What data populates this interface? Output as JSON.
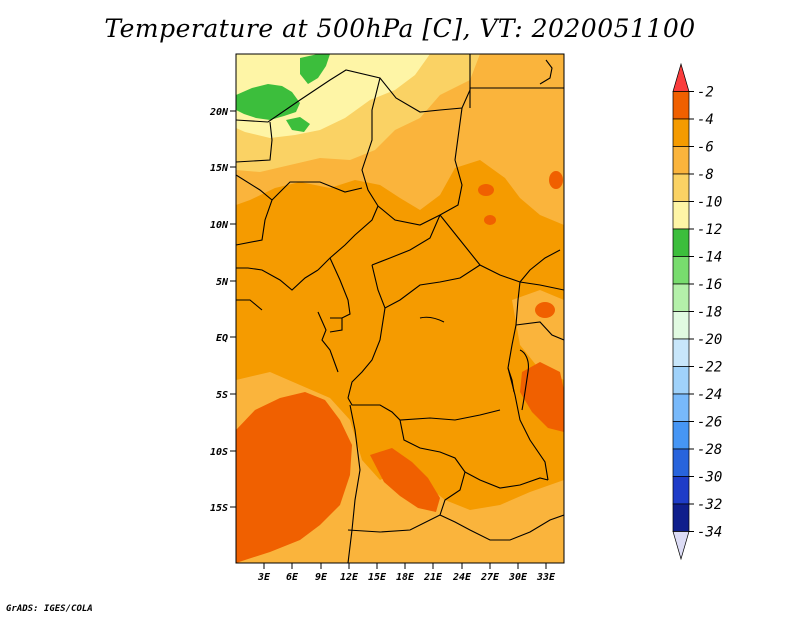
{
  "title": "Temperature at 500hPa [C], VT: 2020051100",
  "footer": "GrADS: IGES/COLA",
  "map": {
    "lat_labels": [
      "20N",
      "15N",
      "10N",
      "5N",
      "EQ",
      "5S",
      "10S",
      "15S"
    ],
    "lon_labels": [
      "3E",
      "6E",
      "9E",
      "12E",
      "15E",
      "18E",
      "21E",
      "24E",
      "27E",
      "30E",
      "33E"
    ]
  },
  "colorbar": {
    "levels": [
      "-2",
      "-4",
      "-6",
      "-8",
      "-10",
      "-12",
      "-14",
      "-16",
      "-18",
      "-20",
      "-22",
      "-24",
      "-26",
      "-28",
      "-30",
      "-32",
      "-34"
    ],
    "colors": [
      "#fa3c3c",
      "#f06000",
      "#f59b00",
      "#fab43c",
      "#fad264",
      "#fef5a6",
      "#3cbe3c",
      "#78dc6e",
      "#b4f0aa",
      "#e1fae1",
      "#c8e6fa",
      "#a0d2fa",
      "#78b9fa",
      "#4696f5",
      "#2864dc",
      "#1e3cc8",
      "#0f1e8c",
      "#dcdcf5"
    ]
  }
}
